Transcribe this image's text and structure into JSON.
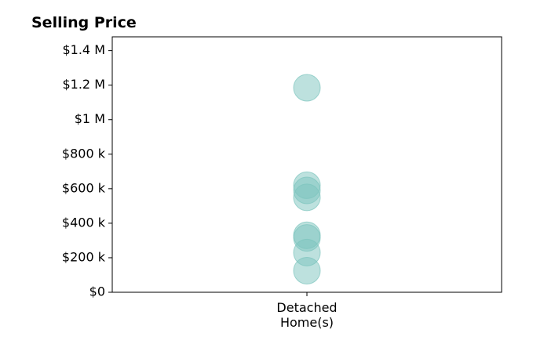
{
  "chart_data": {
    "type": "scatter",
    "title": "Selling Price",
    "xlabel": "",
    "ylabel": "",
    "categories": [
      "Detached\nHome(s)"
    ],
    "ylim": [
      0,
      1480000
    ],
    "yticks": [
      0,
      200000,
      400000,
      600000,
      800000,
      1000000,
      1200000,
      1400000
    ],
    "ytick_labels": [
      "$0",
      "$200 k",
      "$400 k",
      "$600 k",
      "$800 k",
      "$1 M",
      "$1.2 M",
      "$1.4 M"
    ],
    "series": [
      {
        "category": "Detached\nHome(s)",
        "values": [
          1185000,
          620000,
          590000,
          550000,
          330000,
          315000,
          230000,
          125000
        ]
      }
    ],
    "marker_color": "#7cc4bd",
    "grid": false,
    "legend": "none"
  }
}
